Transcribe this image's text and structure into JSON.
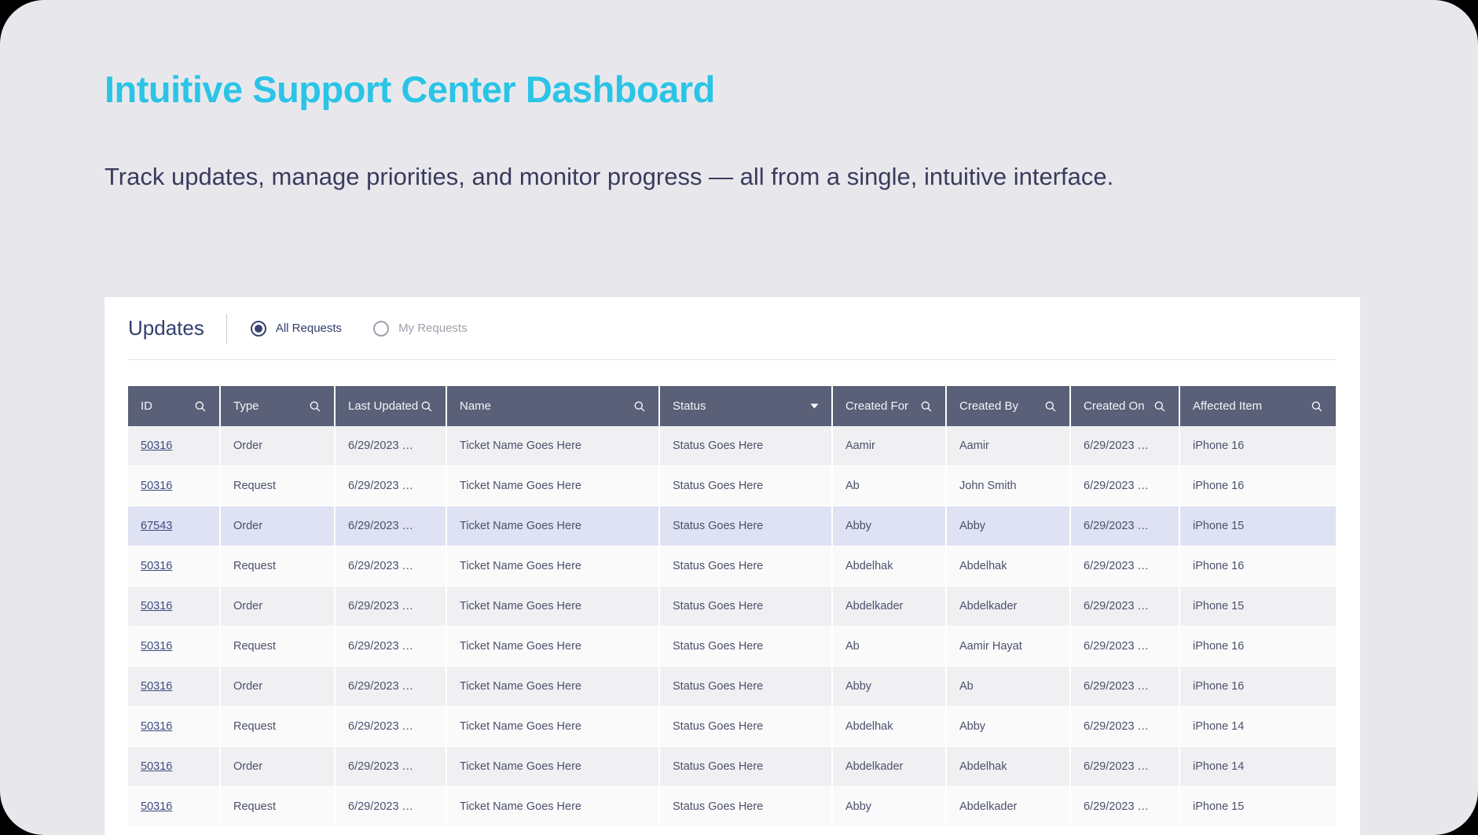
{
  "page": {
    "title": "Intuitive Support Center Dashboard",
    "subtitle": "Track updates, manage priorities, and monitor progress — all from a single, intuitive interface."
  },
  "panel": {
    "heading": "Updates",
    "filters": [
      {
        "label": "All Requests",
        "selected": true
      },
      {
        "label": "My Requests",
        "selected": false
      }
    ]
  },
  "table": {
    "columns": [
      {
        "field": "id",
        "label": "ID",
        "icon": "search"
      },
      {
        "field": "type",
        "label": "Type",
        "icon": "search"
      },
      {
        "field": "last_updated",
        "label": "Last Updated",
        "icon": "search"
      },
      {
        "field": "name",
        "label": "Name",
        "icon": "search"
      },
      {
        "field": "status",
        "label": "Status",
        "icon": "dropdown"
      },
      {
        "field": "created_for",
        "label": "Created For",
        "icon": "search"
      },
      {
        "field": "created_by",
        "label": "Created By",
        "icon": "search"
      },
      {
        "field": "created_on",
        "label": "Created On",
        "icon": "search"
      },
      {
        "field": "affected_item",
        "label": "Affected Item",
        "icon": "search"
      }
    ],
    "rows": [
      {
        "id": "50316",
        "type": "Order",
        "last_updated": "6/29/2023 …",
        "name": "Ticket Name Goes Here",
        "status": "Status Goes Here",
        "created_for": "Aamir",
        "created_by": "Aamir",
        "created_on": "6/29/2023 …",
        "affected_item": "iPhone 16",
        "highlight": false
      },
      {
        "id": "50316",
        "type": "Request",
        "last_updated": "6/29/2023 …",
        "name": "Ticket Name Goes Here",
        "status": "Status Goes Here",
        "created_for": "Ab",
        "created_by": "John Smith",
        "created_on": "6/29/2023 …",
        "affected_item": "iPhone 16",
        "highlight": false
      },
      {
        "id": "67543",
        "type": "Order",
        "last_updated": "6/29/2023 …",
        "name": "Ticket Name Goes Here",
        "status": "Status Goes Here",
        "created_for": "Abby",
        "created_by": "Abby",
        "created_on": "6/29/2023 …",
        "affected_item": "iPhone 15",
        "highlight": true
      },
      {
        "id": "50316",
        "type": "Request",
        "last_updated": "6/29/2023 …",
        "name": "Ticket Name Goes Here",
        "status": "Status Goes Here",
        "created_for": "Abdelhak",
        "created_by": "Abdelhak",
        "created_on": "6/29/2023 …",
        "affected_item": "iPhone 16",
        "highlight": false
      },
      {
        "id": "50316",
        "type": "Order",
        "last_updated": "6/29/2023 …",
        "name": "Ticket Name Goes Here",
        "status": "Status Goes Here",
        "created_for": "Abdelkader",
        "created_by": "Abdelkader",
        "created_on": "6/29/2023 …",
        "affected_item": "iPhone 15",
        "highlight": false
      },
      {
        "id": "50316",
        "type": "Request",
        "last_updated": "6/29/2023 …",
        "name": "Ticket Name Goes Here",
        "status": "Status Goes Here",
        "created_for": "Ab",
        "created_by": "Aamir Hayat",
        "created_on": "6/29/2023 …",
        "affected_item": "iPhone 16",
        "highlight": false
      },
      {
        "id": "50316",
        "type": "Order",
        "last_updated": "6/29/2023 …",
        "name": "Ticket Name Goes Here",
        "status": "Status Goes Here",
        "created_for": "Abby",
        "created_by": "Ab",
        "created_on": "6/29/2023 …",
        "affected_item": "iPhone 16",
        "highlight": false
      },
      {
        "id": "50316",
        "type": "Request",
        "last_updated": "6/29/2023 …",
        "name": "Ticket Name Goes Here",
        "status": "Status Goes Here",
        "created_for": "Abdelhak",
        "created_by": "Abby",
        "created_on": "6/29/2023 …",
        "affected_item": "iPhone 14",
        "highlight": false
      },
      {
        "id": "50316",
        "type": "Order",
        "last_updated": "6/29/2023 …",
        "name": "Ticket Name Goes Here",
        "status": "Status Goes Here",
        "created_for": "Abdelkader",
        "created_by": "Abdelhak",
        "created_on": "6/29/2023 …",
        "affected_item": "iPhone 14",
        "highlight": false
      },
      {
        "id": "50316",
        "type": "Request",
        "last_updated": "6/29/2023 …",
        "name": "Ticket Name Goes Here",
        "status": "Status Goes Here",
        "created_for": "Abby",
        "created_by": "Abdelkader",
        "created_on": "6/29/2023 …",
        "affected_item": "iPhone 15",
        "highlight": false
      }
    ]
  },
  "colors": {
    "accent": "#2BC4E6",
    "header_bg": "#5A6078",
    "row_highlight": "#DFE2F2",
    "row_odd": "#F0F0F3",
    "row_even": "#FAFAFB"
  }
}
